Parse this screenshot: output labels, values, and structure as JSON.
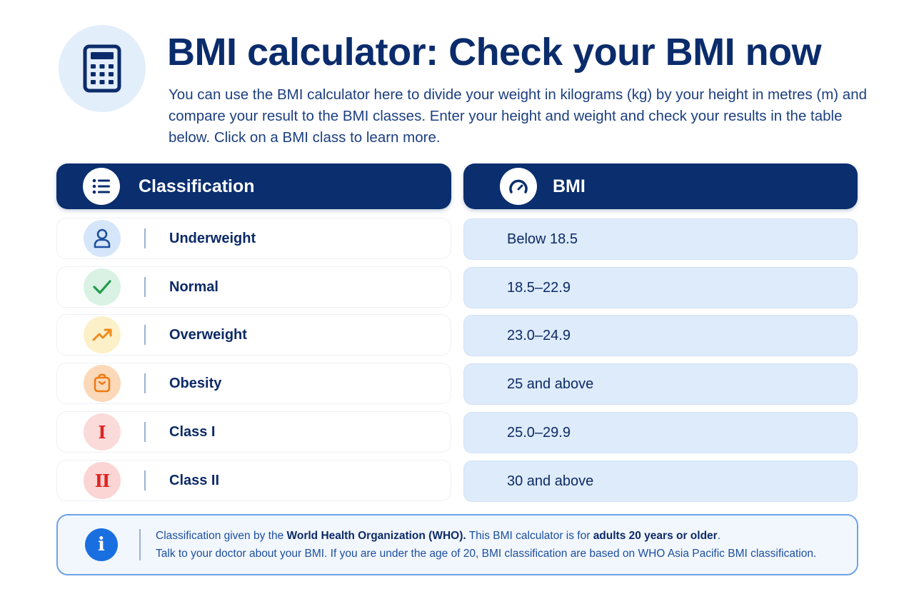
{
  "header": {
    "icon": "calculator-icon",
    "title": "BMI calculator: Check your BMI now",
    "description": "You can use the BMI calculator here to divide your weight in kilograms (kg) by your height in metres (m) and compare your result to the BMI classes. Enter your height and weight and check your results in the table below. Click on a BMI class to learn more."
  },
  "table": {
    "classification_header": {
      "label": "Classification",
      "icon": "list-icon"
    },
    "bmi_header": {
      "label": "BMI",
      "icon": "gauge-icon"
    },
    "rows": [
      {
        "label": "Underweight",
        "value": "Below 18.5",
        "icon": "person-icon",
        "icon_bg": "#d6e6fa",
        "icon_color": "#1d4fa0"
      },
      {
        "label": "Normal",
        "value": "18.5–22.9",
        "icon": "checkmark-icon",
        "icon_bg": "#d9f2e4",
        "icon_color": "#1f9a4a"
      },
      {
        "label": "Overweight",
        "value": "23.0–24.9",
        "icon": "trending-up-icon",
        "icon_bg": "#fcf0c8",
        "icon_color": "#f08a1c"
      },
      {
        "label": "Obesity",
        "value": "25 and above",
        "icon": "clipboard-icon",
        "icon_bg": "#fbd9b8",
        "icon_color": "#f07a14"
      },
      {
        "label": "Class I",
        "value": "25.0–29.9",
        "icon": "roman-one-icon",
        "icon_glyph": "I",
        "icon_bg": "#fbdada",
        "icon_color": "#e0231f"
      },
      {
        "label": "Class II",
        "value": "30 and above",
        "icon": "roman-two-icon",
        "icon_glyph": "II",
        "icon_bg": "#fbd4d4",
        "icon_color": "#e0231f"
      }
    ]
  },
  "info": {
    "icon": "info-icon",
    "line1_a": "Classification given by the ",
    "line1_b": "World Health Organization (WHO).",
    "line1_c": " This BMI calculator is for ",
    "line1_d": "adults 20 years or older",
    "line1_e": ".",
    "line2": "Talk to your doctor about your BMI. If you are under the age of 20, BMI classification are based on WHO Asia Pacific BMI classification."
  },
  "colors": {
    "primary": "#0a2e6e",
    "accent": "#1a6fe0",
    "row_fill": "#deebfa"
  }
}
